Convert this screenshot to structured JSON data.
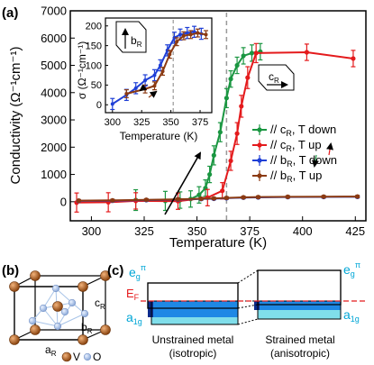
{
  "panel_a": {
    "label": "(a)",
    "chart_data": {
      "type": "scatter",
      "xlabel": "Temperature (K)",
      "ylabel": "Conductivity (Ω⁻¹cm⁻¹)",
      "xlim": [
        290,
        430
      ],
      "ylim": [
        -700,
        7000
      ],
      "xticks": [
        300,
        325,
        350,
        375,
        400,
        425
      ],
      "yticks": [
        0,
        1000,
        2000,
        3000,
        4000,
        5000,
        6000,
        7000
      ],
      "grid": false,
      "legend_position": "lower-right",
      "dashed_vline_x": 364,
      "series": [
        {
          "name": "// cR, T down",
          "color": "#1a9641",
          "x": [
            321,
            335,
            342,
            347,
            351,
            354,
            356,
            358,
            361,
            364,
            366,
            369,
            372,
            376,
            380
          ],
          "y": [
            60,
            30,
            60,
            100,
            250,
            500,
            1000,
            1700,
            2550,
            3800,
            4500,
            5000,
            5350,
            5450,
            5500
          ],
          "yerr": [
            380,
            350,
            300,
            300,
            300,
            300,
            300,
            350,
            350,
            350,
            300,
            300,
            300,
            300,
            300
          ]
        },
        {
          "name": "// cR, T up",
          "color": "#e41a1c",
          "x": [
            293,
            308,
            321,
            341,
            355,
            362,
            366,
            369,
            371,
            374,
            378,
            402,
            424
          ],
          "y": [
            -30,
            -20,
            30,
            20,
            150,
            400,
            1500,
            2500,
            3500,
            4550,
            5450,
            5480,
            5250
          ],
          "yerr": [
            350,
            350,
            300,
            300,
            300,
            300,
            350,
            400,
            400,
            400,
            350,
            300,
            300
          ]
        },
        {
          "name": "// bR, T down",
          "color": "#1f3fd6",
          "x": [
            294,
            310,
            326,
            341,
            352,
            358,
            364,
            372,
            379,
            393,
            410,
            426
          ],
          "y": [
            30,
            40,
            60,
            80,
            100,
            110,
            130,
            150,
            160,
            170,
            175,
            180
          ],
          "yerr": [
            40,
            40,
            40,
            40,
            40,
            40,
            40,
            40,
            40,
            40,
            40,
            40
          ]
        },
        {
          "name": "// bR, T up",
          "color": "#8b3a12",
          "x": [
            294,
            310,
            326,
            341,
            352,
            358,
            364,
            372,
            379,
            393,
            410,
            426
          ],
          "y": [
            40,
            50,
            70,
            90,
            110,
            120,
            140,
            160,
            170,
            180,
            185,
            190
          ],
          "yerr": [
            40,
            40,
            40,
            40,
            40,
            40,
            40,
            40,
            40,
            40,
            40,
            40
          ]
        }
      ]
    },
    "inset": {
      "chart_data": {
        "type": "line",
        "xlabel": "Temperature (K)",
        "ylabel": "σ (Ω⁻¹cm⁻¹)",
        "xlim": [
          294,
          385
        ],
        "ylim": [
          -20,
          220
        ],
        "xticks": [
          300,
          325,
          350,
          375
        ],
        "yticks": [
          0,
          50,
          100,
          150,
          200
        ],
        "dashed_vline_x": 352,
        "series": [
          {
            "name": "// bR, T down",
            "color": "#1f3fd6",
            "x": [
              300,
              312,
              320,
              328,
              336,
              341,
              347,
              353,
              358,
              364,
              370,
              376
            ],
            "y": [
              2,
              25,
              42,
              62,
              75,
              100,
              138,
              170,
              178,
              182,
              185,
              180
            ],
            "yerr": [
              14,
              14,
              14,
              14,
              14,
              14,
              14,
              14,
              14,
              14,
              14,
              14
            ]
          },
          {
            "name": "// bR, T up",
            "color": "#8b3a12",
            "x": [
              312,
              328,
              336,
              343,
              349,
              355,
              361,
              367,
              373,
              380
            ],
            "y": [
              28,
              40,
              48,
              85,
              128,
              160,
              175,
              178,
              182,
              178
            ],
            "yerr": [
              10,
              10,
              10,
              10,
              10,
              10,
              10,
              10,
              10,
              10
            ]
          }
        ]
      },
      "axis_tag": {
        "main": "b",
        "sub": "R"
      }
    },
    "outer_tag": {
      "main": "c",
      "sub": "R"
    },
    "legend": [
      {
        "prefix": "// ",
        "main": "c",
        "sub": "R",
        "suffix": ", T down",
        "color": "#1a9641"
      },
      {
        "prefix": "// ",
        "main": "c",
        "sub": "R",
        "suffix": ", T up",
        "color": "#e41a1c"
      },
      {
        "prefix": "// ",
        "main": "b",
        "sub": "R",
        "suffix": ", T down",
        "color": "#1f3fd6"
      },
      {
        "prefix": "// ",
        "main": "b",
        "sub": "R",
        "suffix": ", T up",
        "color": "#8b3a12"
      }
    ]
  },
  "panel_b": {
    "label": "(b)",
    "axis_c": {
      "main": "c",
      "sub": "R"
    },
    "axis_b": {
      "main": "b",
      "sub": "R"
    },
    "axis_a": {
      "main": "a",
      "sub": "R"
    },
    "legend_v": "V",
    "legend_o": "O",
    "colors": {
      "vanadium": "#b5651d",
      "oxygen": "#a8c4e8"
    }
  },
  "panel_c": {
    "label": "(c)",
    "fermi_main": "E",
    "fermi_sub": "F",
    "egpi_left": {
      "main": "e",
      "sub": "g",
      "sup": "π"
    },
    "egpi_right": {
      "main": "e",
      "sub": "g",
      "sup": "π"
    },
    "a1g_left": {
      "main": "a",
      "sub": "1g"
    },
    "a1g_right": {
      "main": "a",
      "sub": "1g"
    },
    "caption_left": [
      "Unstrained metal",
      "(isotropic)"
    ],
    "caption_right": [
      "Strained metal",
      "(anisotropic)"
    ],
    "colors": {
      "fermi": "#e41a1c",
      "band_dark": "#1e88e5",
      "band_light": "#80deea",
      "label": "#00a6d6"
    }
  }
}
